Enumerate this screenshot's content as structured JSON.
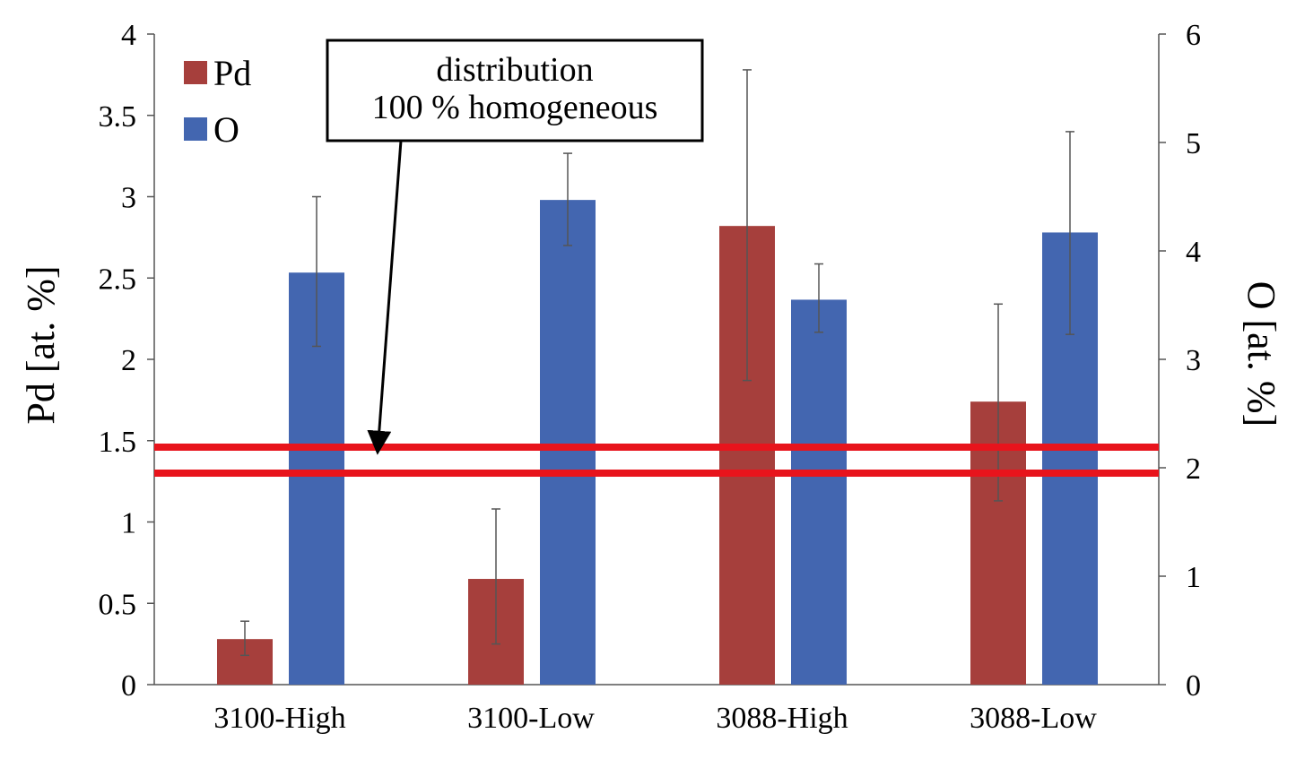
{
  "chart_data": {
    "type": "bar",
    "categories": [
      "3100-High",
      "3100-Low",
      "3088-High",
      "3088-Low"
    ],
    "series": [
      {
        "name": "Pd",
        "axis": "left",
        "color": "#a63f3c",
        "values": [
          0.28,
          0.65,
          2.82,
          1.74
        ],
        "error_low": [
          0.18,
          0.25,
          1.87,
          1.13
        ],
        "error_high": [
          0.39,
          1.08,
          3.78,
          2.34
        ]
      },
      {
        "name": "O",
        "axis": "right",
        "color": "#4366b0",
        "values": [
          3.8,
          4.47,
          3.55,
          4.17
        ],
        "error_low": [
          3.12,
          4.05,
          3.25,
          3.23
        ],
        "error_high": [
          4.5,
          4.9,
          3.88,
          5.1
        ]
      }
    ],
    "left_axis": {
      "label": "Pd [at. %]",
      "ylim": [
        0,
        4
      ],
      "ticks": [
        "0",
        "0.5",
        "1",
        "1.5",
        "2",
        "2.5",
        "3",
        "3.5",
        "4"
      ]
    },
    "right_axis": {
      "label": "O [at. %]",
      "ylim": [
        0,
        6
      ],
      "ticks": [
        "0",
        "1",
        "2",
        "3",
        "4",
        "5",
        "6"
      ]
    },
    "reference_lines": {
      "axis": "left",
      "values": [
        1.46,
        1.3
      ],
      "color": "#e8141c"
    },
    "annotation": {
      "lines": [
        "distribution",
        "100 % homogeneous"
      ],
      "arrow_target_category": "3100-High",
      "arrow_target_value": 1.46
    },
    "legend_position": "top-left",
    "grid": false
  }
}
